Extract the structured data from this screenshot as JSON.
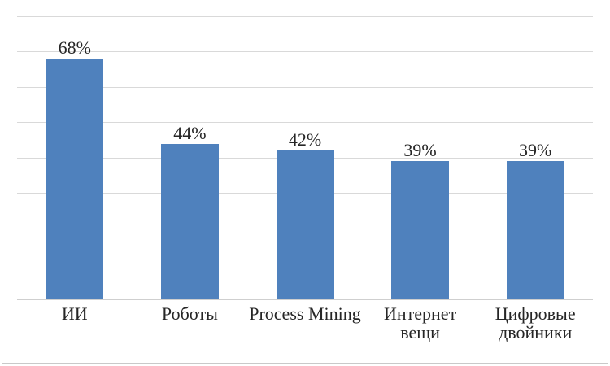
{
  "chart_data": {
    "type": "bar",
    "title": "",
    "categories": [
      "ИИ",
      "Роботы",
      "Process Mining",
      "Интернет вещи",
      "Цифровые двойники"
    ],
    "category_lines": [
      [
        "ИИ"
      ],
      [
        "Роботы"
      ],
      [
        "Process Mining"
      ],
      [
        "Интернет",
        "вещи"
      ],
      [
        "Цифровые",
        "двойники"
      ]
    ],
    "values": [
      68,
      44,
      42,
      39,
      39
    ],
    "data_labels": [
      "68%",
      "44%",
      "42%",
      "39%",
      "39%"
    ],
    "xlabel": "",
    "ylabel": "",
    "ylim": [
      0,
      80
    ],
    "gridline_step": 10,
    "grid": "horizontal-only",
    "legend": "none",
    "y_axis_tick_labels_visible": false,
    "colors": {
      "bar": "#4F81BD",
      "gridline": "#D9D9D9",
      "axis_line": "#CFCFCF",
      "label_text": "#262626",
      "frame_border": "#C9C9C9",
      "background": "#FFFFFF"
    }
  }
}
